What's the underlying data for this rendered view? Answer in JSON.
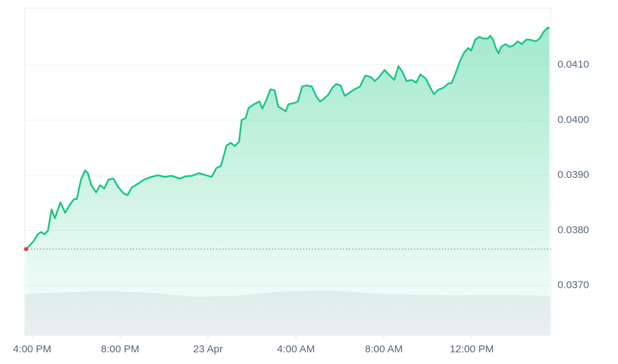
{
  "chart_data": {
    "type": "area",
    "color": "#16c784",
    "marker_color": "#ea3943",
    "grid": true,
    "baseline": true,
    "xlim": [
      -0.34,
      23.59
    ],
    "ylim": [
      0.0361,
      0.04203
    ],
    "xticks": [
      {
        "value": 0,
        "label": "4:00 PM"
      },
      {
        "value": 4,
        "label": "8:00 PM"
      },
      {
        "value": 8,
        "label": "23 Apr"
      },
      {
        "value": 12,
        "label": "4:00 AM"
      },
      {
        "value": 16,
        "label": "8:00 AM"
      },
      {
        "value": 20,
        "label": "12:00 PM"
      }
    ],
    "yticks": [
      {
        "value": 0.037,
        "label": "0.0370"
      },
      {
        "value": 0.038,
        "label": "0.0380"
      },
      {
        "value": 0.039,
        "label": "0.0390"
      },
      {
        "value": 0.04,
        "label": "0.0400"
      },
      {
        "value": 0.041,
        "label": "0.0410"
      }
    ],
    "x": [
      -0.28,
      -0.06,
      0.09,
      0.25,
      0.41,
      0.56,
      0.72,
      0.88,
      1.03,
      1.28,
      1.5,
      1.72,
      1.91,
      2.03,
      2.22,
      2.41,
      2.53,
      2.69,
      2.91,
      3.09,
      3.28,
      3.47,
      3.69,
      3.91,
      4.16,
      4.34,
      4.53,
      4.78,
      5.09,
      5.41,
      5.72,
      6.03,
      6.34,
      6.72,
      6.97,
      7.28,
      7.59,
      7.91,
      8.16,
      8.38,
      8.59,
      8.84,
      9.03,
      9.22,
      9.41,
      9.53,
      9.72,
      9.84,
      10.09,
      10.34,
      10.47,
      10.66,
      10.84,
      11.03,
      11.19,
      11.34,
      11.53,
      11.66,
      11.91,
      12.09,
      12.28,
      12.47,
      12.72,
      12.91,
      13.09,
      13.22,
      13.47,
      13.66,
      13.84,
      14.03,
      14.22,
      14.41,
      14.66,
      14.91,
      15.16,
      15.41,
      15.59,
      15.78,
      16.03,
      16.22,
      16.47,
      16.66,
      16.84,
      17.03,
      17.28,
      17.47,
      17.66,
      17.91,
      18.09,
      18.28,
      18.47,
      18.72,
      18.91,
      19.09,
      19.28,
      19.47,
      19.66,
      19.84,
      19.97,
      20.16,
      20.34,
      20.53,
      20.72,
      20.84,
      20.97,
      21.09,
      21.22,
      21.34,
      21.53,
      21.72,
      21.91,
      22.09,
      22.28,
      22.47,
      22.66,
      22.91,
      23.09,
      23.28,
      23.47,
      23.53
    ],
    "values": [
      0.03766,
      0.03775,
      0.03782,
      0.03793,
      0.03797,
      0.03793,
      0.038,
      0.03838,
      0.03822,
      0.03851,
      0.03832,
      0.03847,
      0.03857,
      0.03857,
      0.03892,
      0.03909,
      0.03904,
      0.03882,
      0.03869,
      0.03882,
      0.03876,
      0.03892,
      0.03894,
      0.03879,
      0.03867,
      0.03864,
      0.03878,
      0.03884,
      0.03892,
      0.03897,
      0.039,
      0.03897,
      0.03899,
      0.03894,
      0.03898,
      0.03899,
      0.03904,
      0.039,
      0.03897,
      0.03913,
      0.03917,
      0.03954,
      0.03959,
      0.03953,
      0.03961,
      0.04,
      0.04004,
      0.04022,
      0.04029,
      0.04034,
      0.04021,
      0.04037,
      0.04056,
      0.04054,
      0.04025,
      0.04021,
      0.04016,
      0.04029,
      0.04031,
      0.04034,
      0.04061,
      0.04063,
      0.04061,
      0.04044,
      0.04034,
      0.04037,
      0.04046,
      0.04059,
      0.04066,
      0.04063,
      0.04044,
      0.04049,
      0.04056,
      0.04061,
      0.04081,
      0.04078,
      0.04071,
      0.04078,
      0.04091,
      0.04083,
      0.04073,
      0.04098,
      0.04088,
      0.04071,
      0.04073,
      0.04068,
      0.04083,
      0.04075,
      0.04061,
      0.04047,
      0.04055,
      0.04059,
      0.04066,
      0.04068,
      0.04087,
      0.04108,
      0.04123,
      0.04131,
      0.04126,
      0.04146,
      0.04151,
      0.04148,
      0.04148,
      0.04153,
      0.04146,
      0.04131,
      0.04121,
      0.04133,
      0.04138,
      0.04133,
      0.04136,
      0.04143,
      0.04138,
      0.04146,
      0.04146,
      0.04143,
      0.04148,
      0.04161,
      0.04168,
      0.04166
    ]
  }
}
